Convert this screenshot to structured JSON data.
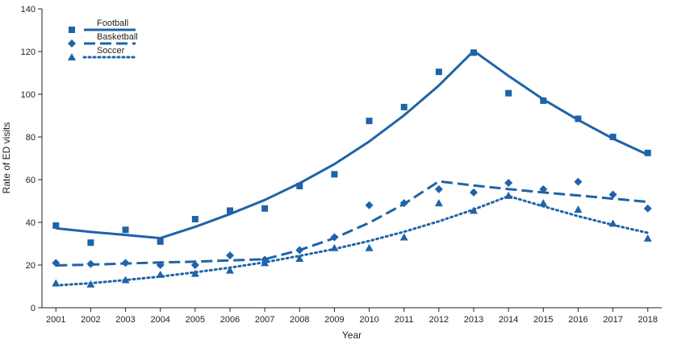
{
  "chart_data": {
    "type": "scatter",
    "title": "",
    "xlabel": "Year",
    "ylabel": "Rate of ED visits",
    "x": [
      2001,
      2002,
      2003,
      2004,
      2005,
      2006,
      2007,
      2008,
      2009,
      2010,
      2011,
      2012,
      2013,
      2014,
      2015,
      2016,
      2017,
      2018
    ],
    "xlim": [
      2000.6,
      2018.4
    ],
    "ylim": [
      0,
      140
    ],
    "yticks": [
      0,
      20,
      40,
      60,
      80,
      100,
      120,
      140
    ],
    "grid": false,
    "legend_position": "top-left",
    "color": "#1f63a8",
    "series": [
      {
        "name": "Football",
        "marker": "square",
        "line_style": "solid",
        "observed": [
          38.5,
          30.5,
          36.5,
          31,
          41.5,
          45.5,
          46.5,
          57,
          62.5,
          87.5,
          94,
          110.5,
          119.5,
          100.5,
          97,
          88.5,
          80,
          72.5
        ],
        "trend": [
          37.2,
          35.5,
          34.1,
          32.6,
          37.9,
          43.9,
          50.5,
          58.3,
          67.3,
          77.9,
          90.1,
          104.1,
          120.3,
          108.6,
          97.6,
          88.0,
          79.2,
          71.7
        ]
      },
      {
        "name": "Basketball",
        "marker": "diamond",
        "line_style": "dashed",
        "observed": [
          21,
          20.5,
          21,
          20,
          20,
          24.5,
          22.5,
          27,
          33,
          48,
          49,
          55.5,
          54,
          58.5,
          55.5,
          59,
          53,
          46.5
        ],
        "trend": [
          19.8,
          20.2,
          20.7,
          21.2,
          21.6,
          22.2,
          22.7,
          27.0,
          32.6,
          39.8,
          48.6,
          59.2,
          57.3,
          55.6,
          54.0,
          52.6,
          51.1,
          49.6
        ]
      },
      {
        "name": "Soccer",
        "marker": "triangle",
        "line_style": "dotted",
        "observed": [
          11.5,
          11,
          13,
          15.5,
          16,
          17.5,
          21,
          23,
          28,
          28,
          33,
          49,
          45.5,
          52.5,
          49,
          46,
          39.5,
          32.5
        ],
        "trend": [
          10.5,
          11.5,
          13.0,
          14.6,
          16.6,
          18.8,
          21.3,
          24.3,
          27.5,
          31.3,
          35.6,
          40.5,
          46.0,
          52.3,
          47.5,
          42.9,
          38.8,
          35.1
        ]
      }
    ]
  }
}
